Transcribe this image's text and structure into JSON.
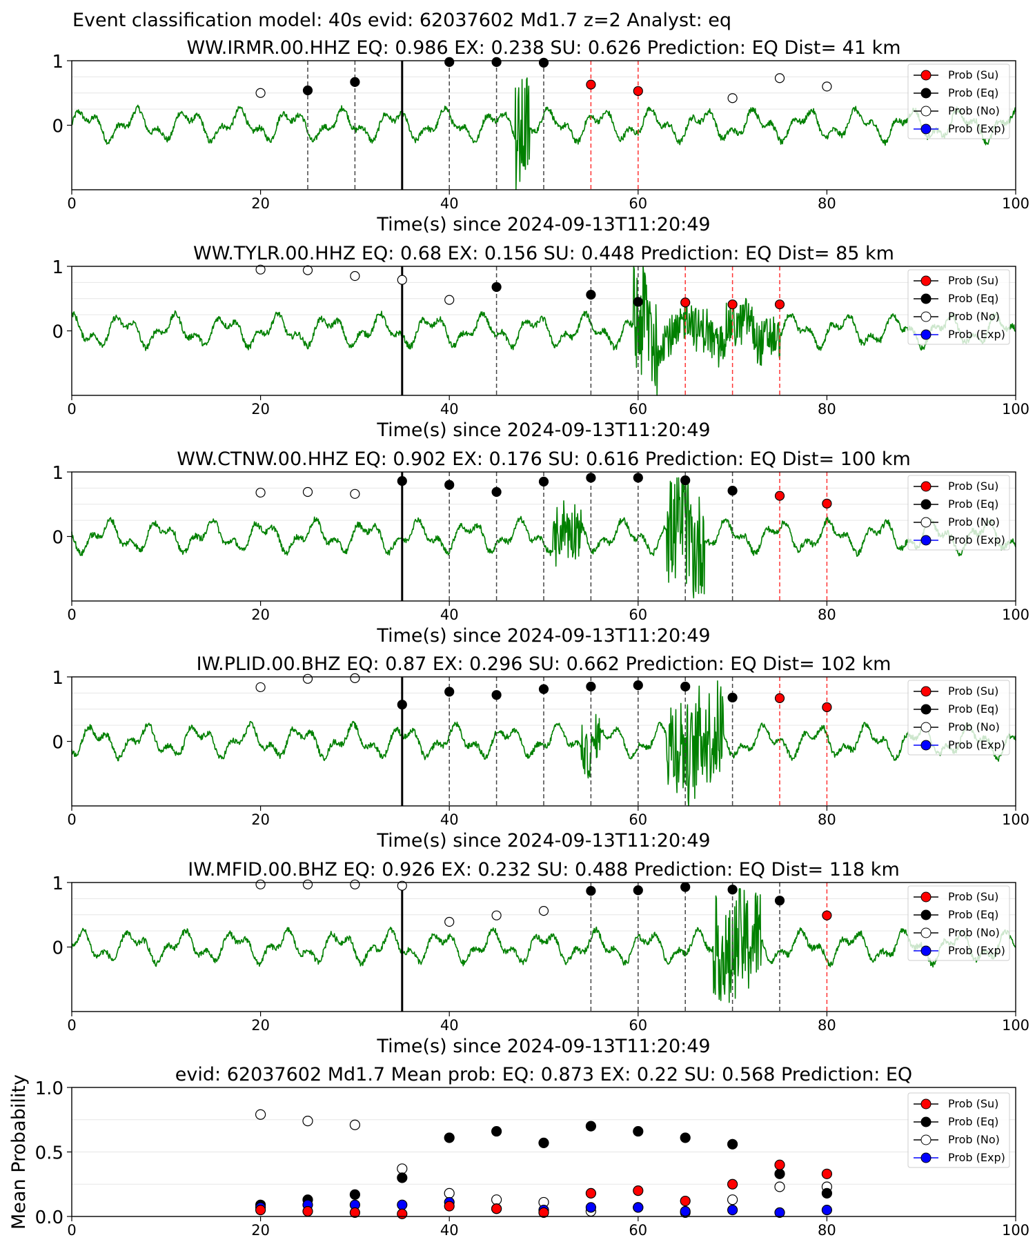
{
  "suptitle": "Event classification model: 40s evid: 62037602 Md1.7 z=2 Analyst: eq",
  "xlabel": "Time(s) since 2024-09-13T11:20:49",
  "legend": [
    "Prob (Su)",
    "Prob (Eq)",
    "Prob (No)",
    "Prob (Exp)"
  ],
  "colors": {
    "waveform": "#008000",
    "su": "#ff0000",
    "eq": "#000000",
    "no": "#ffffff",
    "exp": "#0000ff",
    "pick_eq": "#444444",
    "pick_su": "#ff3333",
    "origin": "#000000"
  },
  "chart_data": [
    {
      "type": "line",
      "title": "WW.IRMR.00.HHZ   EQ: 0.986  EX: 0.238  SU: 0.626   Prediction: EQ    Dist= 41 km",
      "xlim": [
        0,
        100
      ],
      "ylim": [
        -1,
        1
      ],
      "xticks": [
        0,
        20,
        40,
        60,
        80,
        100
      ],
      "yticks": [
        0,
        1
      ],
      "origin_time": 35,
      "noise_bursts": [
        [
          47,
          48.5,
          0.9
        ]
      ],
      "eq_picks": [
        25,
        30,
        40,
        45,
        50
      ],
      "su_picks": [
        55,
        60
      ],
      "points": {
        "no": [
          [
            20,
            0.5
          ],
          [
            70,
            0.42
          ],
          [
            75,
            0.73
          ],
          [
            80,
            0.6
          ]
        ],
        "eq": [
          [
            25,
            0.54
          ],
          [
            30,
            0.67
          ],
          [
            40,
            0.98
          ],
          [
            45,
            0.98
          ],
          [
            50,
            0.97
          ]
        ],
        "su": [
          [
            55,
            0.63
          ],
          [
            60,
            0.53
          ]
        ]
      }
    },
    {
      "type": "line",
      "title": "WW.TYLR.00.HHZ   EQ: 0.68  EX: 0.156  SU: 0.448    Prediction: EQ    Dist= 85 km",
      "xlim": [
        0,
        100
      ],
      "ylim": [
        -1,
        1
      ],
      "xticks": [
        0,
        20,
        40,
        60,
        80,
        100
      ],
      "yticks": [
        0,
        1
      ],
      "origin_time": 35,
      "noise_bursts": [
        [
          59.5,
          62,
          1.0
        ],
        [
          62,
          75,
          0.35
        ]
      ],
      "eq_picks": [
        45,
        55,
        60
      ],
      "su_picks": [
        65,
        70,
        75
      ],
      "points": {
        "no": [
          [
            20,
            0.95
          ],
          [
            25,
            0.94
          ],
          [
            30,
            0.85
          ],
          [
            35,
            0.79
          ],
          [
            40,
            0.48
          ]
        ],
        "eq": [
          [
            45,
            0.68
          ],
          [
            55,
            0.56
          ],
          [
            60,
            0.45
          ]
        ],
        "su": [
          [
            65,
            0.44
          ],
          [
            70,
            0.41
          ],
          [
            75,
            0.41
          ]
        ]
      }
    },
    {
      "type": "line",
      "title": "WW.CTNW.00.HHZ   EQ: 0.902  EX: 0.176  SU: 0.616   Prediction: EQ    Dist= 100 km",
      "xlim": [
        0,
        100
      ],
      "ylim": [
        -1,
        1
      ],
      "xticks": [
        0,
        20,
        40,
        60,
        80,
        100
      ],
      "yticks": [
        0,
        1
      ],
      "origin_time": 35,
      "noise_bursts": [
        [
          51,
          54,
          0.45
        ],
        [
          63,
          67,
          0.85
        ]
      ],
      "eq_picks": [
        40,
        45,
        50,
        55,
        60,
        65,
        70
      ],
      "su_picks": [
        75,
        80
      ],
      "points": {
        "no": [
          [
            20,
            0.68
          ],
          [
            25,
            0.69
          ],
          [
            30,
            0.66
          ]
        ],
        "eq": [
          [
            35,
            0.86
          ],
          [
            40,
            0.8
          ],
          [
            45,
            0.69
          ],
          [
            50,
            0.85
          ],
          [
            55,
            0.91
          ],
          [
            60,
            0.91
          ],
          [
            65,
            0.87
          ],
          [
            70,
            0.71
          ]
        ],
        "su": [
          [
            75,
            0.63
          ],
          [
            80,
            0.51
          ]
        ]
      }
    },
    {
      "type": "line",
      "title": "IW.PLID.00.BHZ   EQ: 0.87  EX: 0.296  SU: 0.662   Prediction: EQ    Dist= 102 km",
      "xlim": [
        0,
        100
      ],
      "ylim": [
        -1,
        1
      ],
      "xticks": [
        0,
        20,
        40,
        60,
        80,
        100
      ],
      "yticks": [
        0,
        1
      ],
      "origin_time": 35,
      "noise_bursts": [
        [
          54,
          56,
          0.35
        ],
        [
          63,
          69,
          0.8
        ]
      ],
      "eq_picks": [
        40,
        45,
        50,
        55,
        60,
        65,
        70
      ],
      "su_picks": [
        75,
        80
      ],
      "points": {
        "no": [
          [
            20,
            0.84
          ],
          [
            25,
            0.97
          ],
          [
            30,
            0.98
          ]
        ],
        "eq": [
          [
            35,
            0.57
          ],
          [
            40,
            0.77
          ],
          [
            45,
            0.72
          ],
          [
            50,
            0.81
          ],
          [
            55,
            0.85
          ],
          [
            60,
            0.87
          ],
          [
            65,
            0.85
          ],
          [
            70,
            0.68
          ]
        ],
        "su": [
          [
            75,
            0.67
          ],
          [
            80,
            0.53
          ]
        ]
      }
    },
    {
      "type": "line",
      "title": "IW.MFID.00.BHZ   EQ: 0.926  EX: 0.232  SU: 0.488   Prediction: EQ    Dist= 118 km",
      "xlim": [
        0,
        100
      ],
      "ylim": [
        -1,
        1
      ],
      "xticks": [
        0,
        20,
        40,
        60,
        80,
        100
      ],
      "yticks": [
        0,
        1
      ],
      "origin_time": 35,
      "noise_bursts": [
        [
          68,
          73,
          0.8
        ]
      ],
      "eq_picks": [
        55,
        60,
        65,
        70,
        75
      ],
      "su_picks": [
        80
      ],
      "points": {
        "no": [
          [
            20,
            0.97
          ],
          [
            25,
            0.97
          ],
          [
            30,
            0.97
          ],
          [
            35,
            0.95
          ],
          [
            40,
            0.39
          ],
          [
            45,
            0.49
          ],
          [
            50,
            0.56
          ]
        ],
        "eq": [
          [
            55,
            0.87
          ],
          [
            60,
            0.88
          ],
          [
            65,
            0.93
          ],
          [
            70,
            0.89
          ],
          [
            75,
            0.72
          ]
        ],
        "su": [
          [
            80,
            0.49
          ]
        ]
      }
    },
    {
      "type": "scatter",
      "title": "evid: 62037602  Md1.7   Mean prob:    EQ: 0.873  EX: 0.22  SU: 0.568   Prediction: EQ",
      "ylabel": "Mean Probability",
      "xlim": [
        0,
        100
      ],
      "ylim": [
        0,
        1
      ],
      "xticks": [
        0,
        20,
        40,
        60,
        80,
        100
      ],
      "yticks": [
        0,
        0.5,
        1
      ],
      "ytick_labels": [
        "0.0",
        "0.5",
        "1.0"
      ],
      "x": [
        20,
        25,
        30,
        35,
        40,
        45,
        50,
        55,
        60,
        65,
        70,
        75,
        80
      ],
      "series": [
        {
          "name": "Prob (No)",
          "key": "no",
          "values": [
            0.79,
            0.74,
            0.71,
            0.37,
            0.18,
            0.13,
            0.11,
            0.04,
            0.07,
            0.03,
            0.13,
            0.23,
            0.23
          ]
        },
        {
          "name": "Prob (Eq)",
          "key": "eq",
          "values": [
            0.09,
            0.13,
            0.17,
            0.3,
            0.61,
            0.66,
            0.57,
            0.7,
            0.66,
            0.61,
            0.56,
            0.33,
            0.18
          ]
        },
        {
          "name": "Prob (Exp)",
          "key": "exp",
          "values": [
            0.07,
            0.09,
            0.09,
            0.09,
            0.11,
            0.06,
            0.05,
            0.07,
            0.07,
            0.04,
            0.05,
            0.03,
            0.05
          ]
        },
        {
          "name": "Prob (Su)",
          "key": "su",
          "values": [
            0.05,
            0.04,
            0.03,
            0.02,
            0.08,
            0.06,
            0.03,
            0.18,
            0.2,
            0.12,
            0.25,
            0.4,
            0.33
          ]
        }
      ]
    }
  ]
}
